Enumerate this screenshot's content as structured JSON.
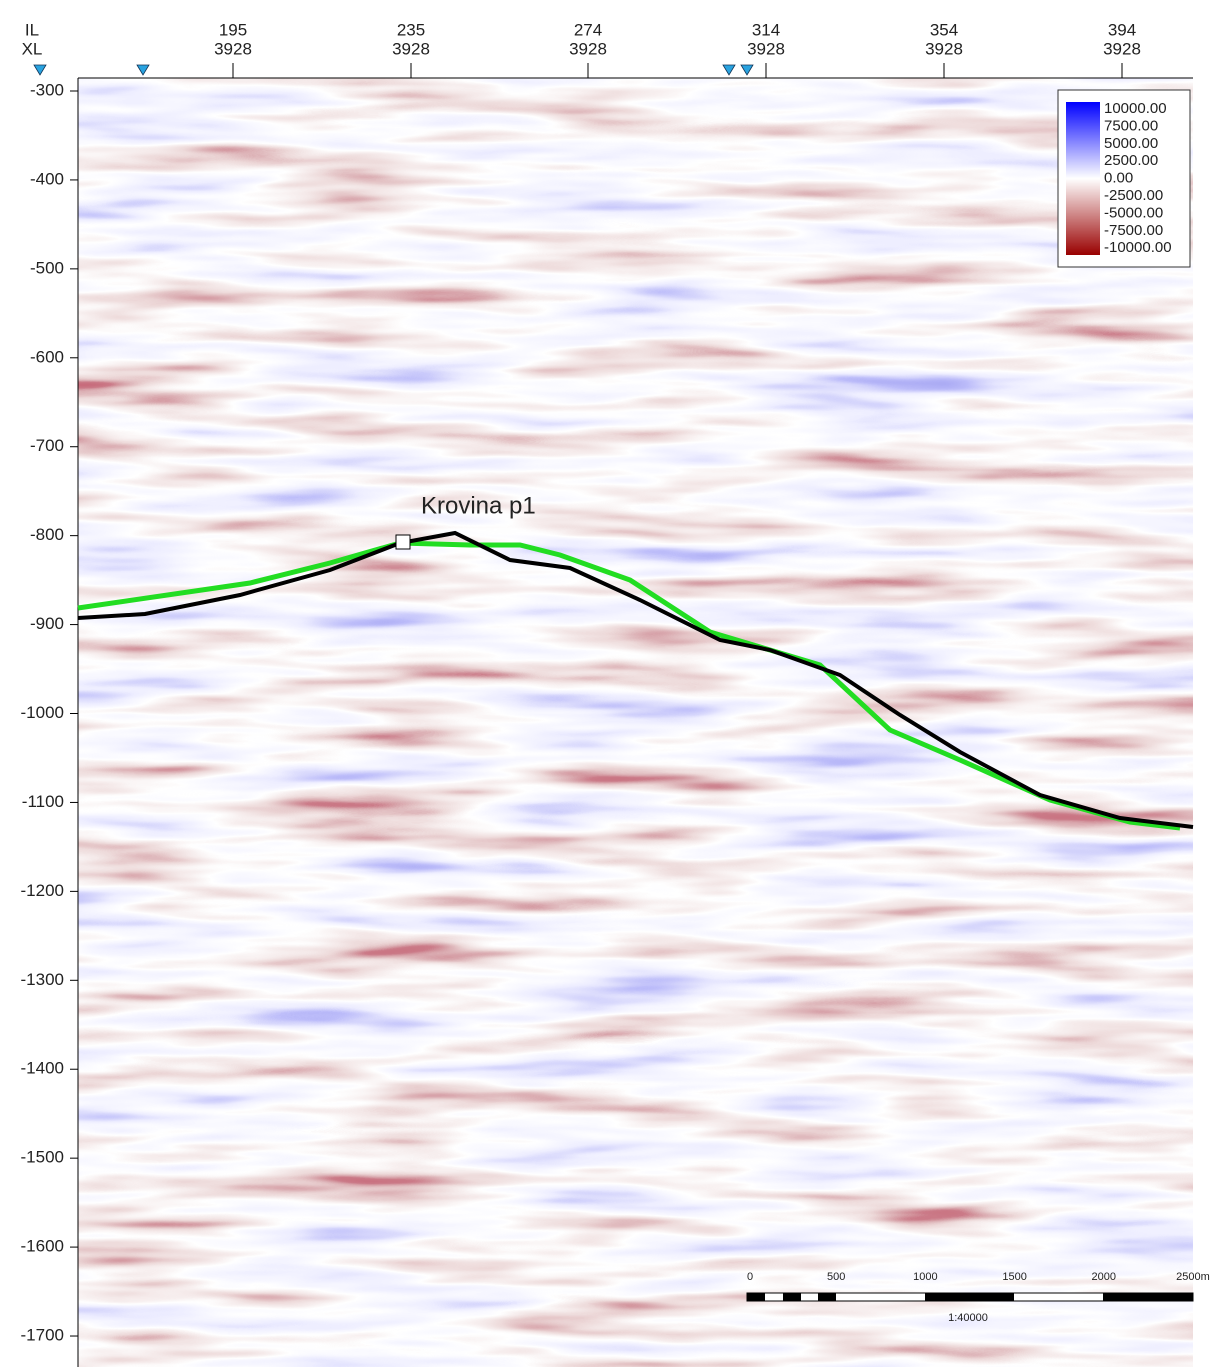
{
  "y_axis": {
    "ticks": [
      "-300",
      "-400",
      "-500",
      "-600",
      "-700",
      "-800",
      "-900",
      "-1000",
      "-1100",
      "-1200",
      "-1300",
      "-1400",
      "-1500",
      "-1600",
      "-1700"
    ]
  },
  "x_axis": {
    "row_labels": [
      "IL",
      "XL"
    ],
    "columns": [
      {
        "il": "195",
        "xl": "3928"
      },
      {
        "il": "235",
        "xl": "3928"
      },
      {
        "il": "274",
        "xl": "3928"
      },
      {
        "il": "314",
        "xl": "3928"
      },
      {
        "il": "354",
        "xl": "3928"
      },
      {
        "il": "394",
        "xl": "3928"
      }
    ]
  },
  "legend": {
    "labels": [
      "10000.00",
      "7500.00",
      "5000.00",
      "2500.00",
      "0.00",
      "-2500.00",
      "-5000.00",
      "-7500.00",
      "-10000.00"
    ]
  },
  "horizon_label": "Krovina p1",
  "scale_bar": {
    "labels": [
      "0",
      "500",
      "1000",
      "1500",
      "2000",
      "2500m"
    ],
    "ratio": "1:40000"
  }
}
